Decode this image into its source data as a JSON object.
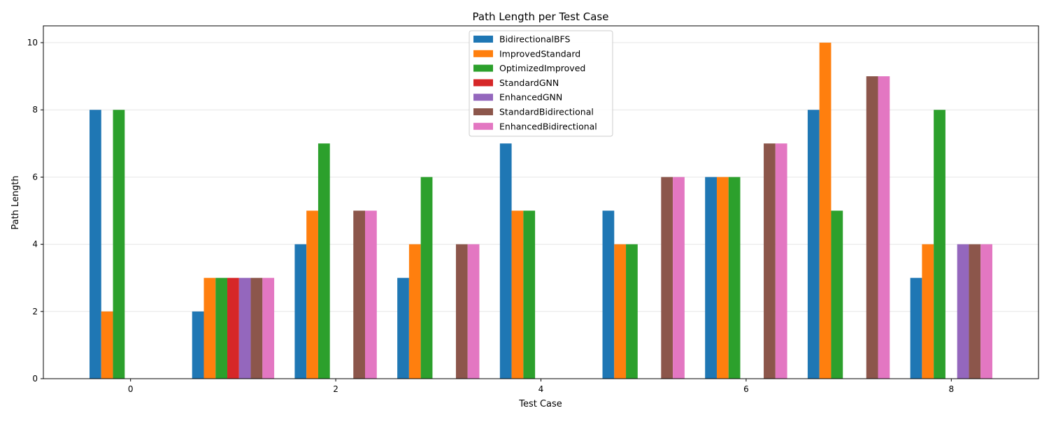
{
  "chart_data": {
    "type": "bar",
    "title": "Path Length per Test Case",
    "xlabel": "Test Case",
    "ylabel": "Path Length",
    "ylim": [
      0,
      10.5
    ],
    "yticks": [
      0,
      2,
      4,
      6,
      8,
      10
    ],
    "xlim": [
      -0.85,
      8.85
    ],
    "xticks": [
      0,
      2,
      4,
      6,
      8
    ],
    "grid": "y",
    "legend_position": "top-center",
    "categories": [
      0,
      1,
      2,
      3,
      4,
      5,
      6,
      7,
      8
    ],
    "series": [
      {
        "name": "BidirectionalBFS",
        "color": "#1f77b4",
        "values": [
          8,
          2,
          4,
          3,
          7,
          5,
          6,
          8,
          3
        ]
      },
      {
        "name": "ImprovedStandard",
        "color": "#ff7f0e",
        "values": [
          2,
          3,
          5,
          4,
          5,
          4,
          6,
          10,
          4
        ]
      },
      {
        "name": "OptimizedImproved",
        "color": "#2ca02c",
        "values": [
          8,
          3,
          7,
          6,
          5,
          4,
          6,
          5,
          8
        ]
      },
      {
        "name": "StandardGNN",
        "color": "#d62728",
        "values": [
          0,
          3,
          0,
          0,
          0,
          0,
          0,
          0,
          0
        ]
      },
      {
        "name": "EnhancedGNN",
        "color": "#9467bd",
        "values": [
          0,
          3,
          0,
          0,
          0,
          0,
          0,
          0,
          4
        ]
      },
      {
        "name": "StandardBidirectional",
        "color": "#8c564b",
        "values": [
          0,
          3,
          5,
          4,
          0,
          6,
          7,
          9,
          4
        ]
      },
      {
        "name": "EnhancedBidirectional",
        "color": "#e377c2",
        "values": [
          0,
          3,
          5,
          4,
          0,
          6,
          7,
          9,
          4
        ]
      }
    ]
  }
}
